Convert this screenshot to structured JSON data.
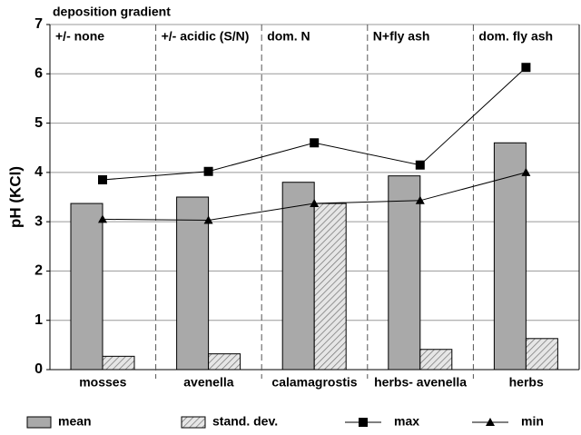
{
  "chart_data": {
    "type": "bar",
    "y_label": "pH (KCl)",
    "zone_title": "deposition gradient",
    "zones": [
      "+/- none",
      "+/- acidic (S/N)",
      "dom. N",
      "N+fly ash",
      "dom. fly ash"
    ],
    "categories": [
      "mosses",
      "avenella",
      "calamagrostis",
      "herbs- avenella",
      "herbs"
    ],
    "series": [
      {
        "name": "mean",
        "type": "bar",
        "color": "#a9a9a9",
        "values": [
          3.37,
          3.5,
          3.8,
          3.93,
          4.6
        ]
      },
      {
        "name": "stand. dev.",
        "type": "bar",
        "pattern": "hatch",
        "color": "#d0d0d0",
        "values": [
          0.27,
          0.32,
          3.37,
          0.41,
          0.63
        ]
      },
      {
        "name": "max",
        "type": "line",
        "marker": "square",
        "color": "#000000",
        "values": [
          3.85,
          4.02,
          4.6,
          4.15,
          6.13
        ]
      },
      {
        "name": "min",
        "type": "line",
        "marker": "triangle",
        "color": "#000000",
        "values": [
          3.05,
          3.03,
          3.37,
          3.43,
          4.0
        ]
      }
    ],
    "ylim": [
      0,
      7
    ],
    "yticks": [
      0,
      1,
      2,
      3,
      4,
      5,
      6,
      7
    ],
    "grid": true,
    "legend": "bottom"
  }
}
